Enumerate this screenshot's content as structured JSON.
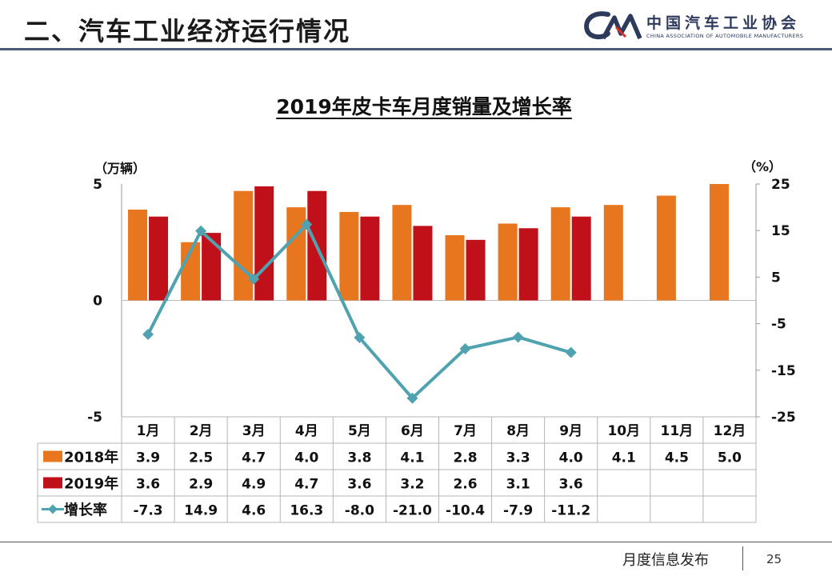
{
  "header": {
    "title": "二、汽车工业经济运行情况",
    "logo_name": "中国汽车工业协会",
    "logo_sub": "CHINA ASSOCIATION OF AUTOMOBILE MANUFACTURERS"
  },
  "chart_data": {
    "type": "bar",
    "title": "2019年皮卡车月度销量及增长率",
    "categories": [
      "1月",
      "2月",
      "3月",
      "4月",
      "5月",
      "6月",
      "7月",
      "8月",
      "9月",
      "10月",
      "11月",
      "12月"
    ],
    "series": [
      {
        "name": "2018年",
        "type": "bar",
        "axis": "left",
        "color": "#E8761E",
        "values": [
          3.9,
          2.5,
          4.7,
          4.0,
          3.8,
          4.1,
          2.8,
          3.3,
          4.0,
          4.1,
          4.5,
          5.0
        ],
        "labels": [
          "3.9",
          "2.5",
          "4.7",
          "4.0",
          "3.8",
          "4.1",
          "2.8",
          "3.3",
          "4.0",
          "4.1",
          "4.5",
          "5.0"
        ]
      },
      {
        "name": "2019年",
        "type": "bar",
        "axis": "left",
        "color": "#C0101A",
        "values": [
          3.6,
          2.9,
          4.9,
          4.7,
          3.6,
          3.2,
          2.6,
          3.1,
          3.6,
          null,
          null,
          null
        ],
        "labels": [
          "3.6",
          "2.9",
          "4.9",
          "4.7",
          "3.6",
          "3.2",
          "2.6",
          "3.1",
          "3.6",
          "",
          "",
          ""
        ]
      },
      {
        "name": "增长率",
        "type": "line",
        "axis": "right",
        "color": "#4FA3B0",
        "values": [
          -7.3,
          14.9,
          4.6,
          16.3,
          -8.0,
          -21.0,
          -10.4,
          -7.9,
          -11.2,
          null,
          null,
          null
        ],
        "labels": [
          "-7.3",
          "14.9",
          "4.6",
          "16.3",
          "-8.0",
          "-21.0",
          "-10.4",
          "-7.9",
          "-11.2",
          "",
          "",
          ""
        ]
      }
    ],
    "y_left": {
      "unit": "（万辆）",
      "range": [
        -5,
        5
      ],
      "ticks": [
        5,
        0,
        -5
      ]
    },
    "y_right": {
      "unit": "（%）",
      "range": [
        -25,
        25
      ],
      "ticks": [
        25,
        15,
        5,
        -5,
        -15,
        -25
      ]
    },
    "legend": "data-table"
  },
  "footer": {
    "text": "月度信息发布",
    "page": "25"
  }
}
